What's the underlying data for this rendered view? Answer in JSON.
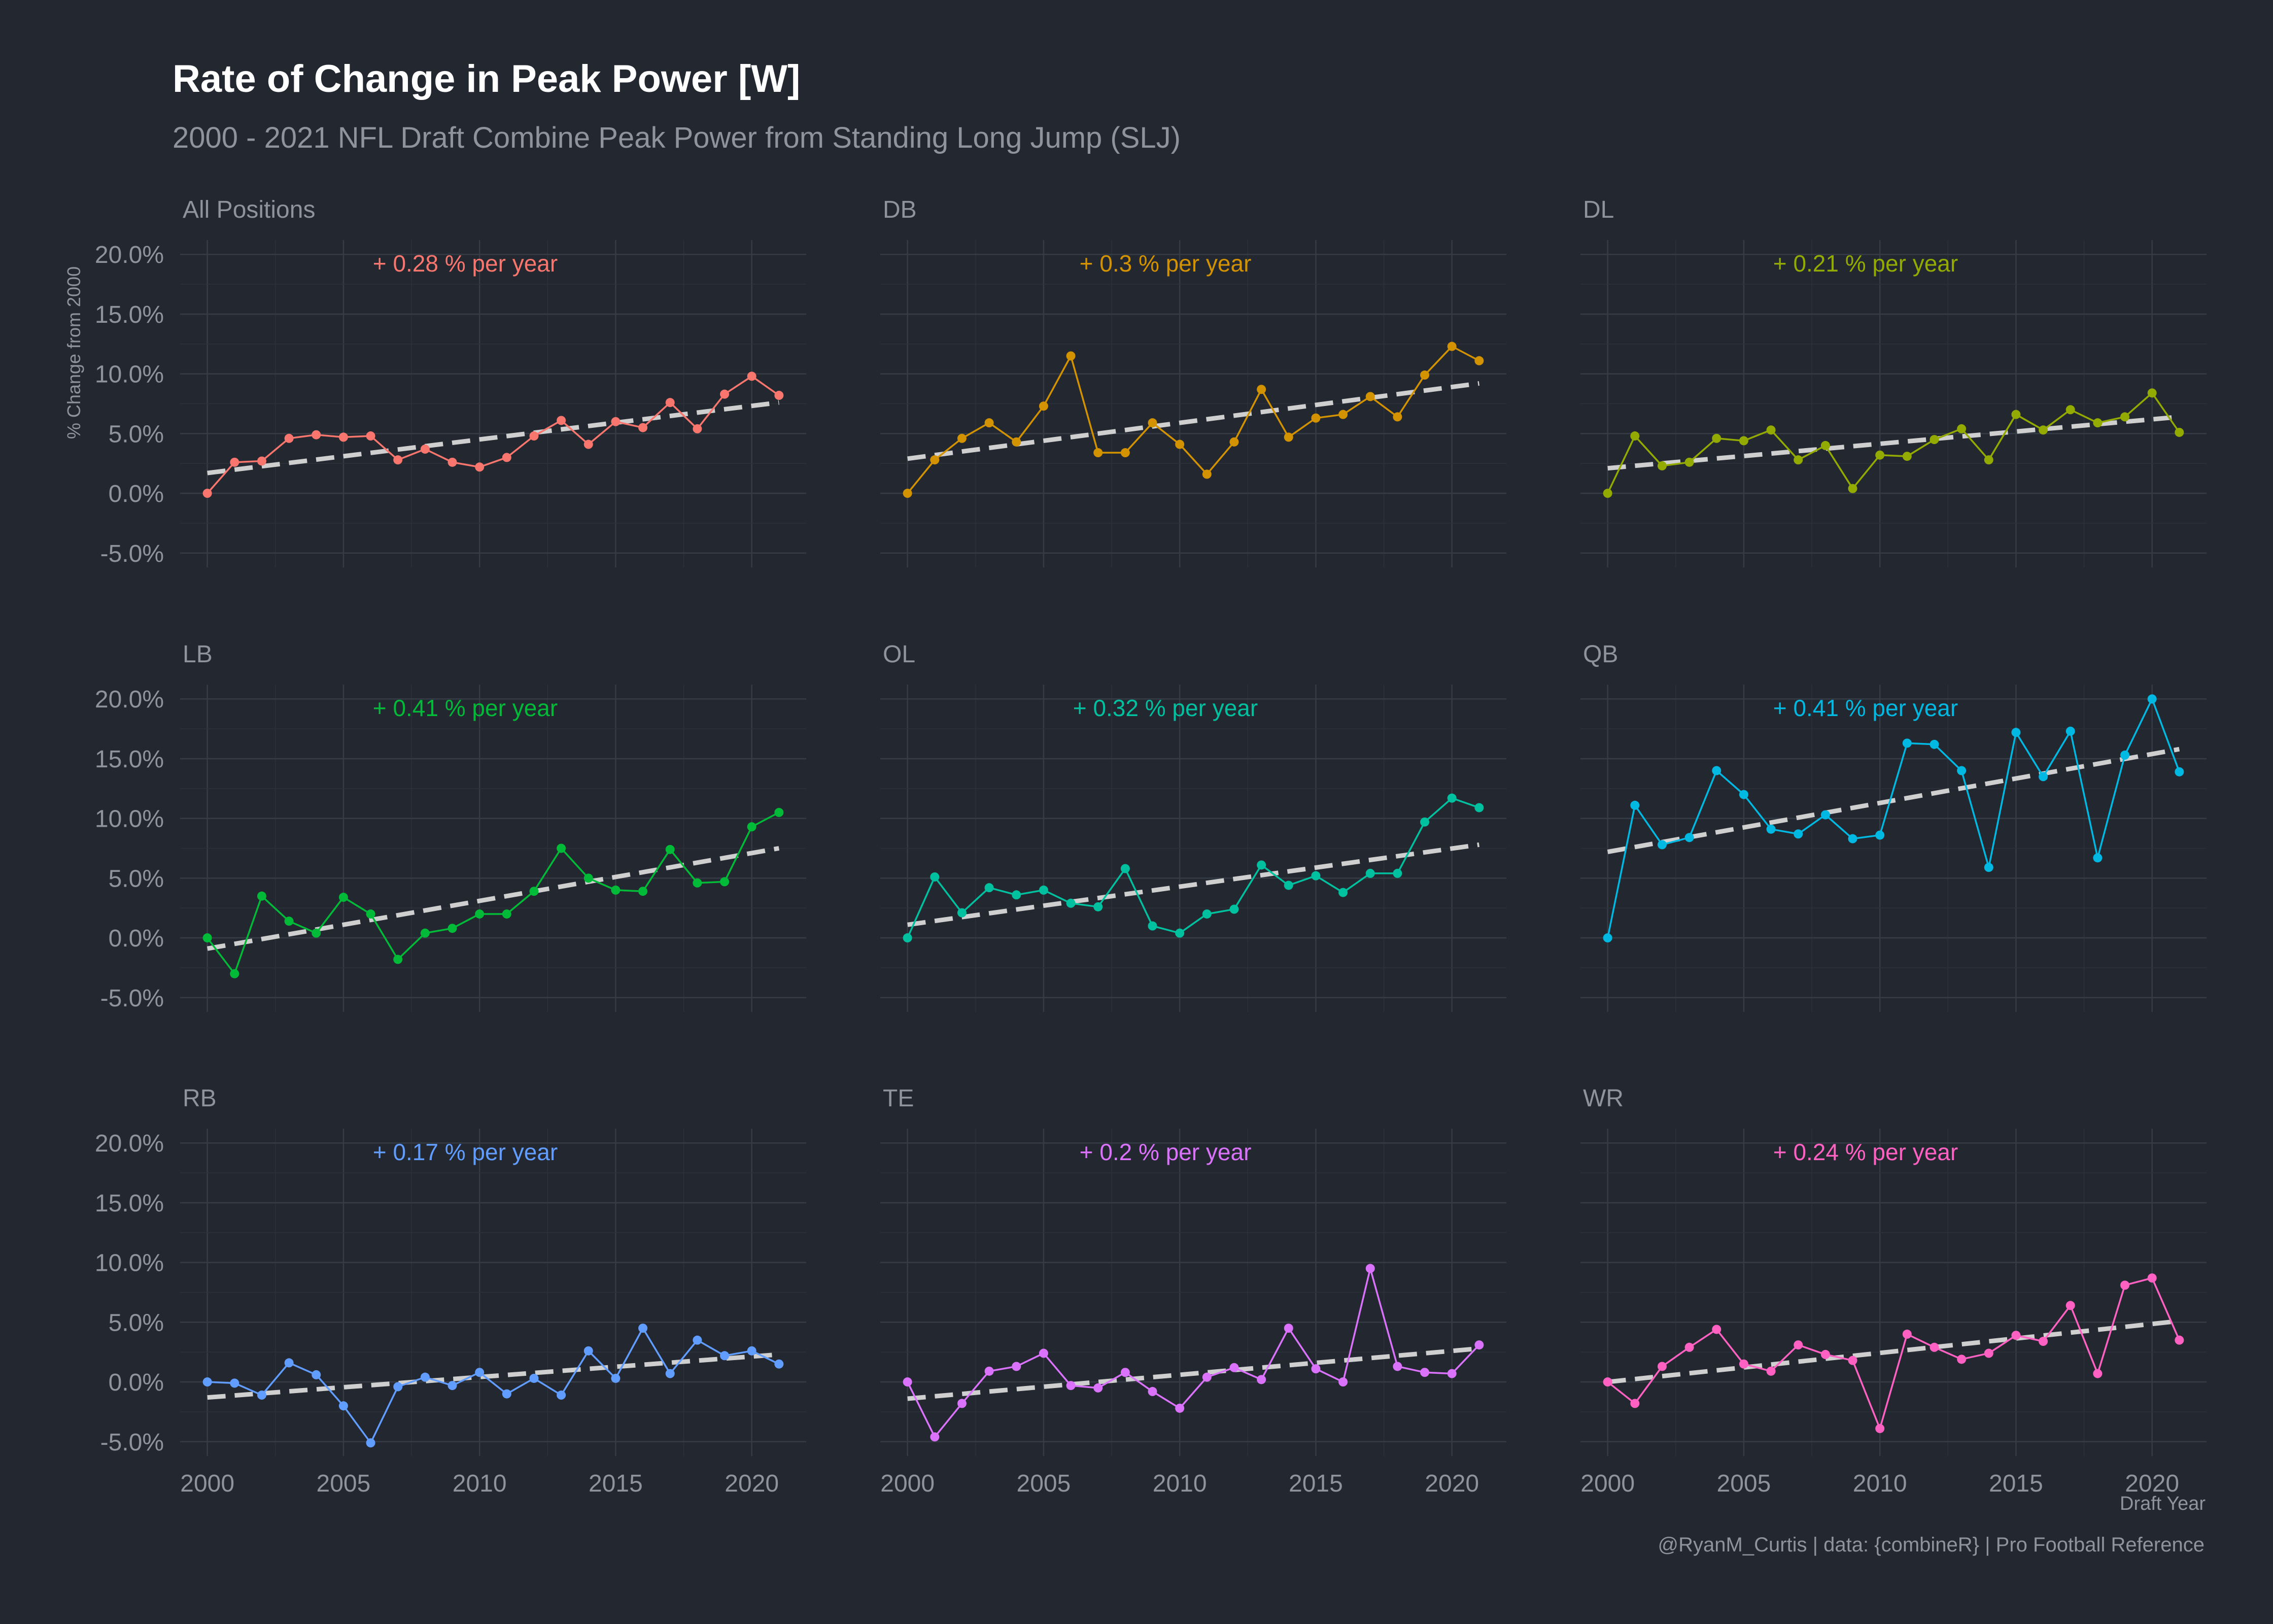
{
  "title": "Rate of Change in Peak Power [W]",
  "subtitle": "2000 - 2021 NFL Draft Combine Peak Power from Standing Long Jump (SLJ)",
  "caption": "@RyanM_Curtis | data: {combineR} | Pro Football Reference",
  "chart_data": {
    "type": "line",
    "layout": "facet grid 3x3",
    "xlabel": "Draft Year",
    "ylabel": "% Change from 2000",
    "x": [
      2000,
      2001,
      2002,
      2003,
      2004,
      2005,
      2006,
      2007,
      2008,
      2009,
      2010,
      2011,
      2012,
      2013,
      2014,
      2015,
      2016,
      2017,
      2018,
      2019,
      2020,
      2021
    ],
    "xlim": [
      1999,
      2022
    ],
    "ylim": [
      -6.2,
      21.2
    ],
    "x_ticks": [
      2000,
      2005,
      2010,
      2015,
      2020
    ],
    "y_ticks": [
      -5,
      0,
      5,
      10,
      15,
      20
    ],
    "y_tick_labels": [
      "-5.0%",
      "0.0%",
      "5.0%",
      "10.0%",
      "15.0%",
      "20.0%"
    ],
    "grid": true,
    "trend_line": {
      "style": "dashed",
      "color": "#cfcfcf"
    },
    "panels": [
      {
        "name": "All Positions",
        "color": "#f8766d",
        "annotation": "+ 0.28 % per year",
        "values": [
          0.0,
          2.6,
          2.7,
          4.6,
          4.9,
          4.7,
          4.8,
          2.8,
          3.7,
          2.6,
          2.2,
          3.0,
          4.8,
          6.1,
          4.1,
          6.0,
          5.5,
          7.6,
          5.4,
          8.3,
          9.8,
          8.2
        ],
        "trend": [
          1.7,
          7.6
        ]
      },
      {
        "name": "DB",
        "color": "#d39200",
        "annotation": "+ 0.3 % per year",
        "values": [
          0.0,
          2.8,
          4.6,
          5.9,
          4.3,
          7.3,
          11.5,
          3.4,
          3.4,
          5.9,
          4.1,
          1.6,
          4.3,
          8.7,
          4.7,
          6.3,
          6.6,
          8.1,
          6.4,
          9.9,
          12.3,
          11.1
        ],
        "trend": [
          2.9,
          9.2
        ]
      },
      {
        "name": "DL",
        "color": "#93aa00",
        "annotation": "+ 0.21 % per year",
        "values": [
          0.0,
          4.8,
          2.3,
          2.6,
          4.6,
          4.4,
          5.3,
          2.8,
          4.0,
          0.4,
          3.2,
          3.1,
          4.5,
          5.4,
          2.8,
          6.6,
          5.3,
          7.0,
          5.9,
          6.4,
          8.4,
          5.1
        ],
        "trend": [
          2.1,
          6.4
        ]
      },
      {
        "name": "LB",
        "color": "#00ba38",
        "annotation": "+ 0.41 % per year",
        "values": [
          0.0,
          -3.0,
          3.5,
          1.4,
          0.4,
          3.4,
          2.0,
          -1.8,
          0.4,
          0.8,
          2.0,
          2.0,
          3.9,
          7.5,
          5.0,
          4.0,
          3.9,
          7.4,
          4.6,
          4.7,
          9.3,
          10.5
        ],
        "trend": [
          -0.9,
          7.5
        ]
      },
      {
        "name": "OL",
        "color": "#00c19f",
        "annotation": "+ 0.32 % per year",
        "values": [
          0.0,
          5.1,
          2.1,
          4.2,
          3.6,
          4.0,
          2.9,
          2.6,
          5.8,
          1.0,
          0.4,
          2.0,
          2.4,
          6.1,
          4.4,
          5.2,
          3.8,
          5.4,
          5.4,
          9.7,
          11.7,
          10.9
        ],
        "trend": [
          1.1,
          7.8
        ]
      },
      {
        "name": "QB",
        "color": "#00b9e3",
        "annotation": "+ 0.41 % per year",
        "values": [
          0.0,
          11.1,
          7.8,
          8.4,
          14.0,
          12.0,
          9.1,
          8.7,
          10.3,
          8.3,
          8.6,
          16.3,
          16.2,
          14.0,
          5.9,
          17.2,
          13.5,
          17.3,
          6.7,
          15.3,
          20.0,
          13.9
        ],
        "trend": [
          7.2,
          15.8
        ]
      },
      {
        "name": "RB",
        "color": "#619cff",
        "annotation": "+ 0.17 % per year",
        "values": [
          0.0,
          -0.1,
          -1.1,
          1.6,
          0.6,
          -2.0,
          -5.1,
          -0.4,
          0.4,
          -0.3,
          0.8,
          -1.0,
          0.3,
          -1.1,
          2.6,
          0.3,
          4.5,
          0.7,
          3.5,
          2.2,
          2.6,
          1.5
        ],
        "trend": [
          -1.3,
          2.3
        ]
      },
      {
        "name": "TE",
        "color": "#db72fb",
        "annotation": "+ 0.2 % per year",
        "values": [
          0.0,
          -4.6,
          -1.8,
          0.9,
          1.3,
          2.4,
          -0.3,
          -0.5,
          0.8,
          -0.8,
          -2.2,
          0.4,
          1.2,
          0.2,
          4.5,
          1.1,
          0.0,
          9.5,
          1.3,
          0.8,
          0.7,
          3.1
        ],
        "trend": [
          -1.4,
          2.8
        ]
      },
      {
        "name": "WR",
        "color": "#ff61c3",
        "annotation": "+ 0.24 % per year",
        "values": [
          0.0,
          -1.8,
          1.3,
          2.9,
          4.4,
          1.5,
          0.9,
          3.1,
          2.3,
          1.8,
          -3.9,
          4.0,
          2.9,
          1.9,
          2.4,
          3.9,
          3.4,
          6.4,
          0.7,
          8.1,
          8.7,
          3.5
        ],
        "trend": [
          0.0,
          5.1
        ]
      }
    ]
  }
}
